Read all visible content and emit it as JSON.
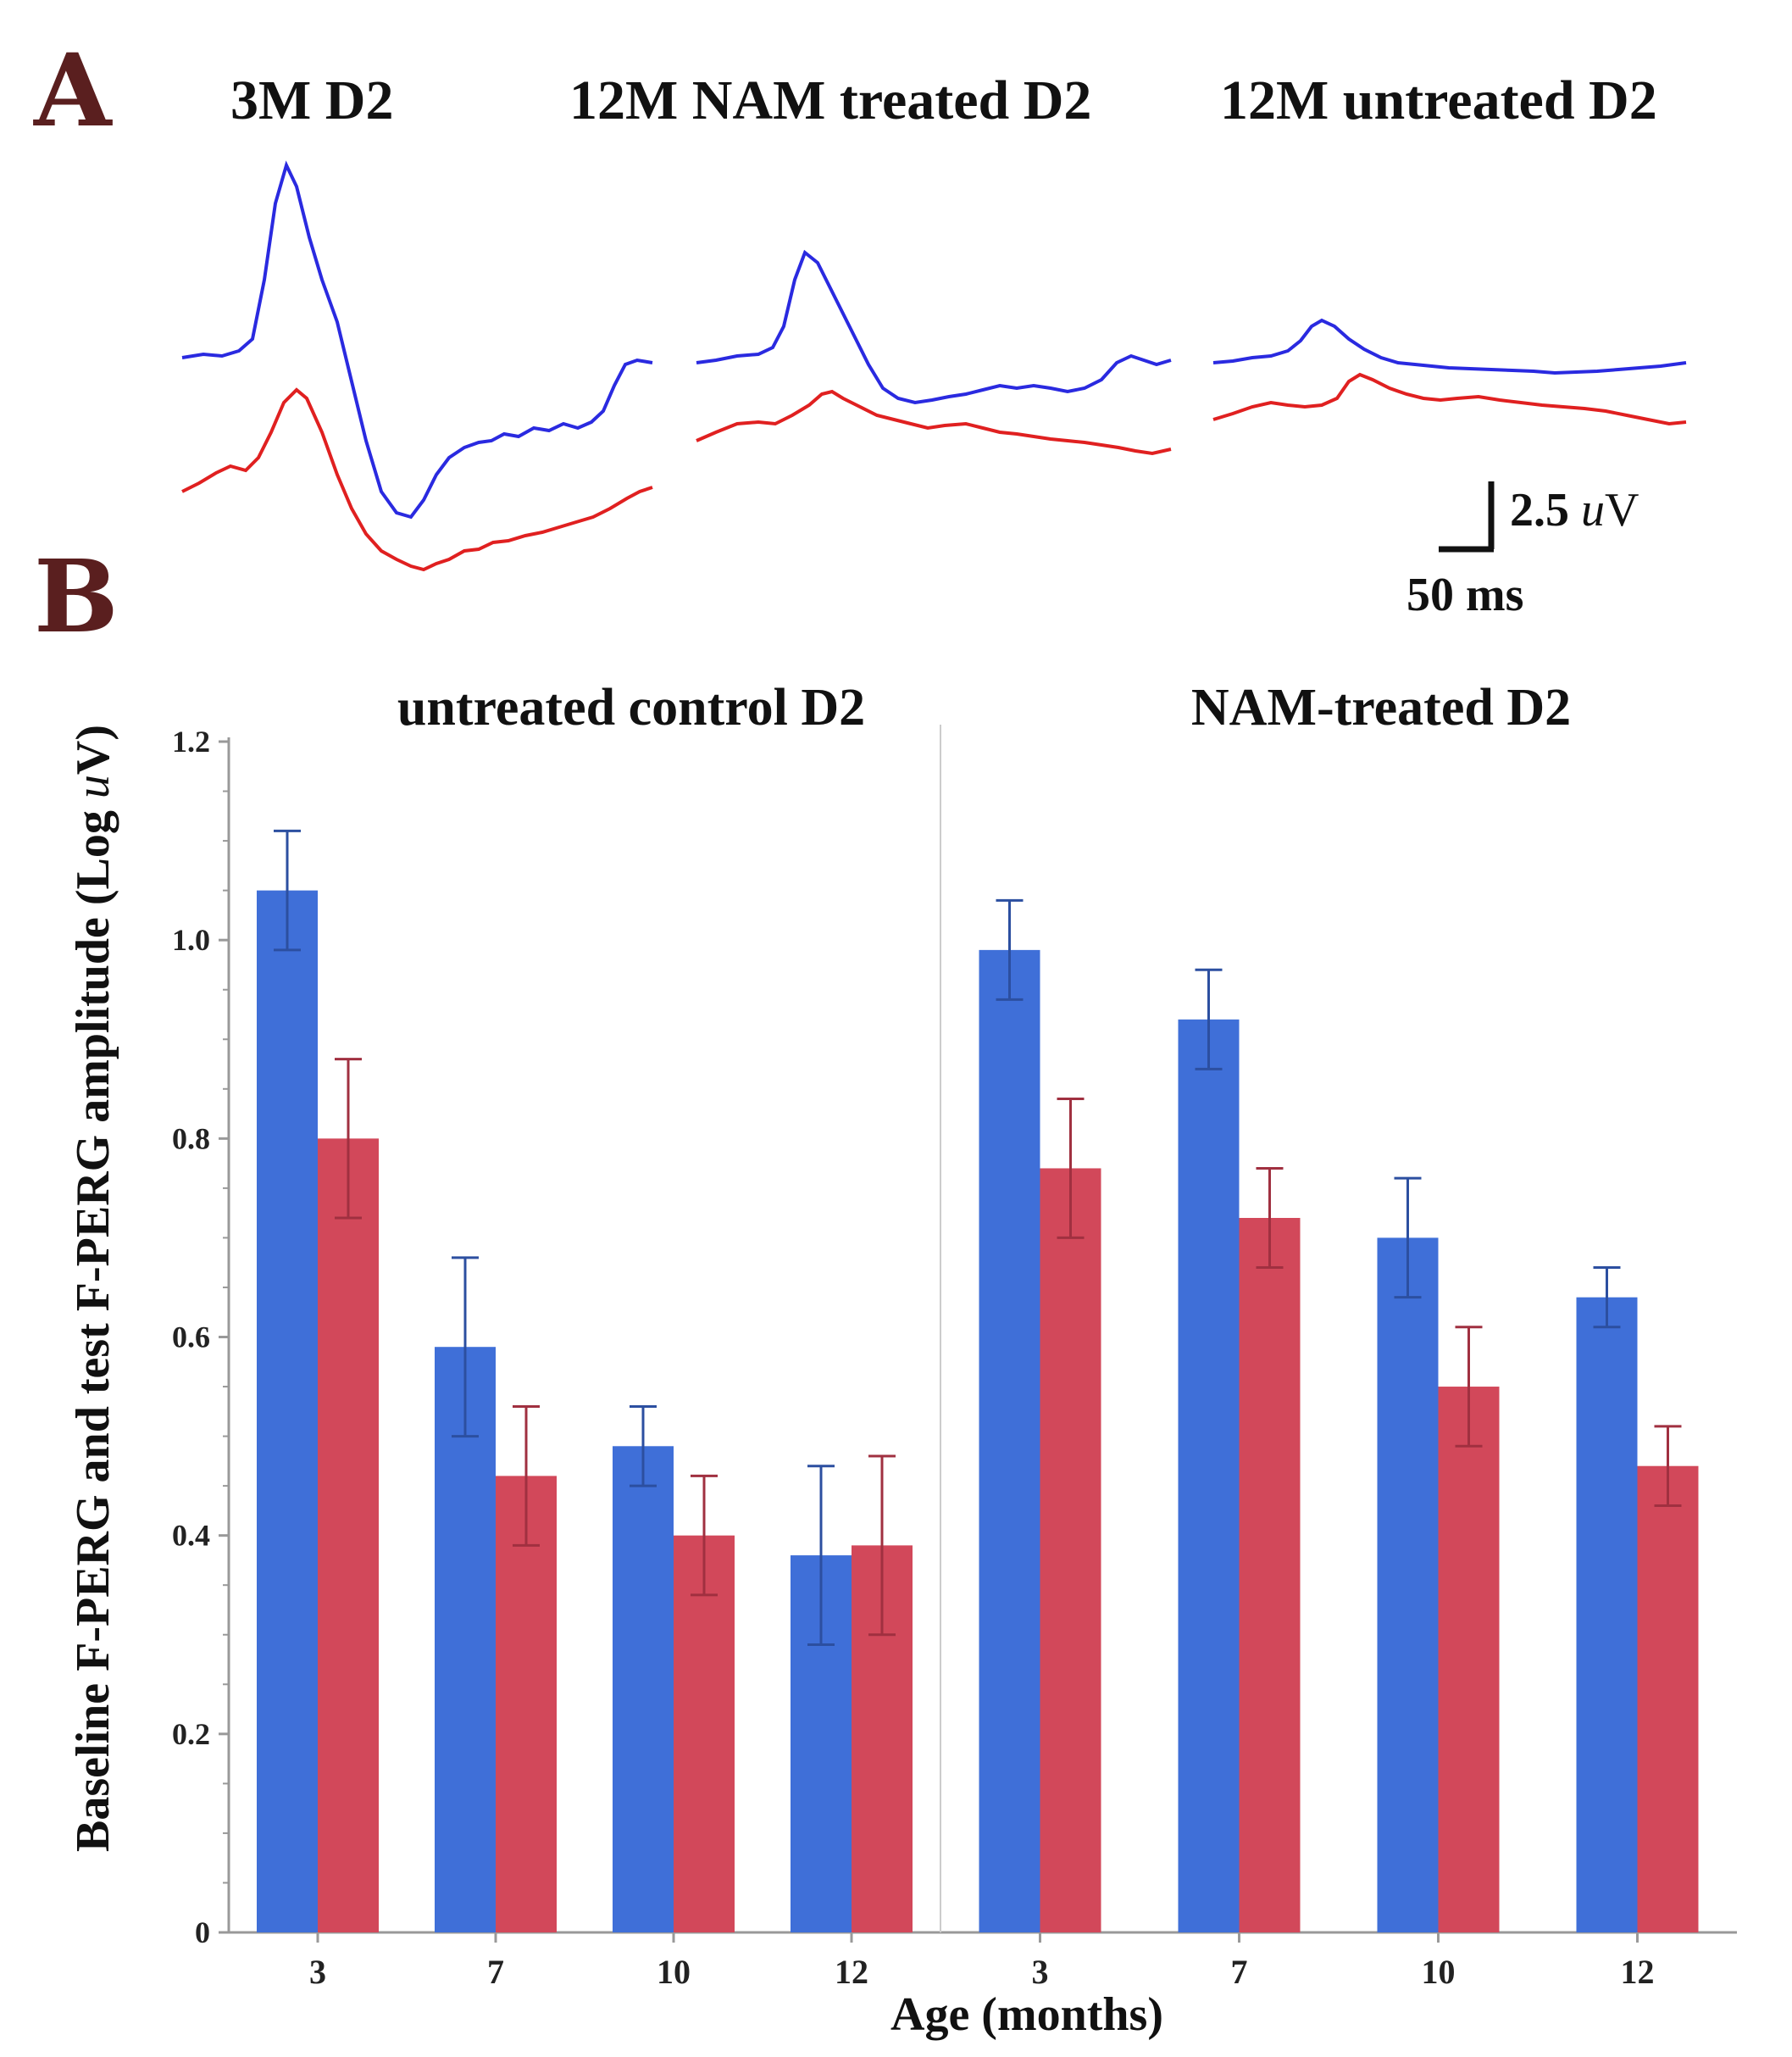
{
  "panel_a": {
    "letter": "A",
    "trace_titles": [
      "3M D2",
      "12M NAM treated D2",
      "12M untreated D2"
    ],
    "scale_bar": {
      "voltage_value": "2.5",
      "voltage_unit_italic": "u",
      "voltage_unit": "V",
      "time": "50 ms"
    },
    "colors": {
      "baseline": "#2a2ae0",
      "test": "#e02020"
    }
  },
  "panel_b": {
    "letter": "B",
    "group_titles": [
      "untreated control D2",
      "NAM-treated D2"
    ]
  },
  "chart_data": {
    "type": "bar",
    "ylabel": "Baseline F-PERG and test F-PERG amplitude (Log uV)",
    "ylabel_prefix": "Baseline F-PERG and test F-PERG amplitude (Log ",
    "ylabel_italic": "u",
    "ylabel_suffix": "V)",
    "xlabel": "Age (months)",
    "ylim": [
      0,
      1.2
    ],
    "yticks": [
      "0",
      "0.2",
      "0.4",
      "0.6",
      "0.8",
      "1.0",
      "1.2"
    ],
    "groups": [
      {
        "name": "untreated control D2",
        "categories": [
          "3",
          "7",
          "10",
          "12"
        ],
        "series": [
          {
            "values": [
              1.05,
              0.59,
              0.49,
              0.38
            ],
            "errors": [
              0.06,
              0.09,
              0.04,
              0.09
            ],
            "color": "#3f6fd8"
          },
          {
            "values": [
              0.8,
              0.46,
              0.4,
              0.39
            ],
            "errors": [
              0.08,
              0.07,
              0.06,
              0.09
            ],
            "color": "#d2485a"
          }
        ]
      },
      {
        "name": "NAM-treated D2",
        "categories": [
          "3",
          "7",
          "10",
          "12"
        ],
        "series": [
          {
            "values": [
              0.99,
              0.92,
              0.7,
              0.64
            ],
            "errors": [
              0.05,
              0.05,
              0.06,
              0.03
            ],
            "color": "#3f6fd8"
          },
          {
            "values": [
              0.77,
              0.72,
              0.55,
              0.47
            ],
            "errors": [
              0.07,
              0.05,
              0.06,
              0.04
            ],
            "color": "#d2485a"
          }
        ]
      }
    ],
    "error_bar_colors": [
      "#2c4fa0",
      "#a03040"
    ],
    "grid": false,
    "legend": "none"
  }
}
